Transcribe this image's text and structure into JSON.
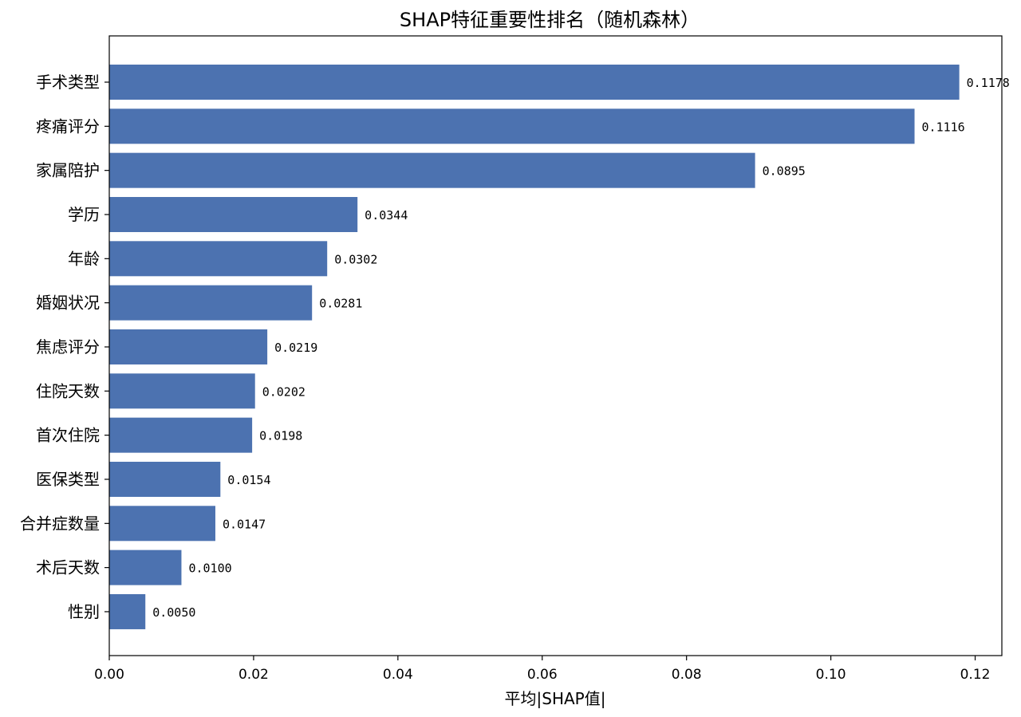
{
  "chart_data": {
    "type": "bar",
    "orientation": "horizontal",
    "title": "SHAP特征重要性排名（随机森林）",
    "xlabel": "平均|SHAP值|",
    "ylabel": "",
    "xlim": [
      0,
      0.1237
    ],
    "xticks": [
      0.0,
      0.02,
      0.04,
      0.06,
      0.08,
      0.1,
      0.12
    ],
    "xtick_labels": [
      "0.00",
      "0.02",
      "0.04",
      "0.06",
      "0.08",
      "0.10",
      "0.12"
    ],
    "grid": false,
    "bar_color": "#4c72b0",
    "categories": [
      "手术类型",
      "疼痛评分",
      "家属陪护",
      "学历",
      "年龄",
      "婚姻状况",
      "焦虑评分",
      "住院天数",
      "首次住院",
      "医保类型",
      "合并症数量",
      "术后天数",
      "性别"
    ],
    "values": [
      0.1178,
      0.1116,
      0.0895,
      0.0344,
      0.0302,
      0.0281,
      0.0219,
      0.0202,
      0.0198,
      0.0154,
      0.0147,
      0.01,
      0.005
    ],
    "data_labels": [
      "0.1178",
      "0.1116",
      "0.0895",
      "0.0344",
      "0.0302",
      "0.0281",
      "0.0219",
      "0.0202",
      "0.0198",
      "0.0154",
      "0.0147",
      "0.0100",
      "0.0050"
    ]
  }
}
